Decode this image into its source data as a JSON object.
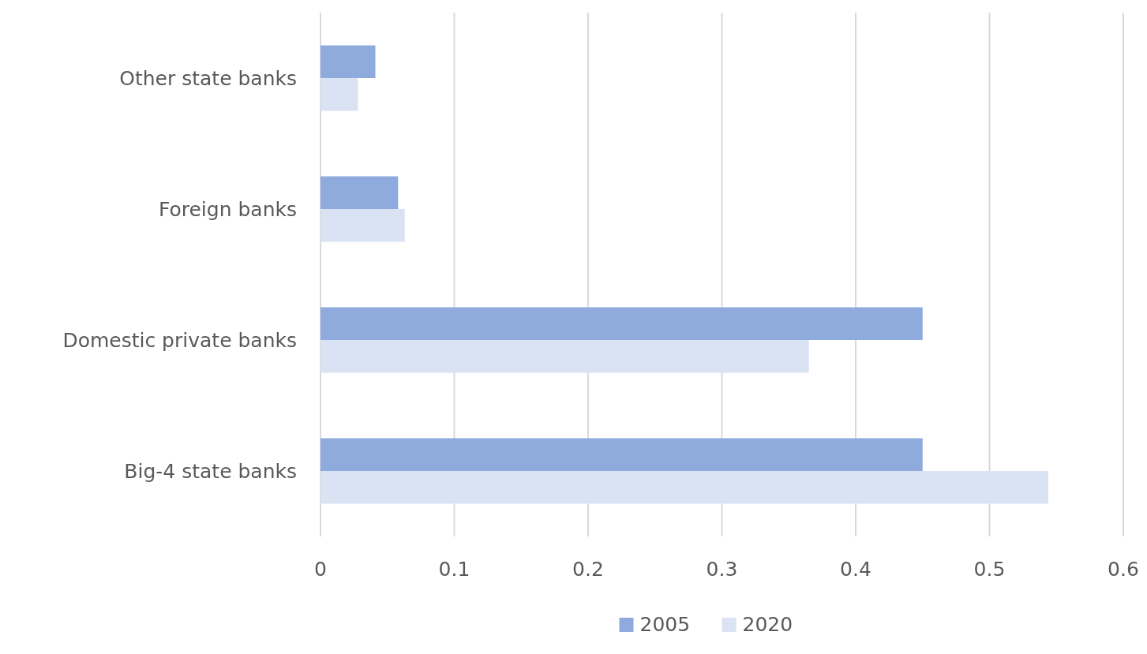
{
  "chart_data": {
    "type": "bar",
    "orientation": "horizontal",
    "categories": [
      "Other state banks",
      "Foreign banks",
      "Domestic private banks",
      "Big-4 state banks"
    ],
    "series": [
      {
        "name": "2005",
        "color": "#8faadc",
        "values": [
          0.041,
          0.058,
          0.45,
          0.45
        ]
      },
      {
        "name": "2020",
        "color": "#dae3f3",
        "values": [
          0.028,
          0.063,
          0.365,
          0.544
        ]
      }
    ],
    "xlim": [
      0,
      0.6
    ],
    "xticks": [
      0,
      0.1,
      0.2,
      0.3,
      0.4,
      0.5,
      0.6
    ],
    "grid": "x",
    "legend": "bottom"
  }
}
